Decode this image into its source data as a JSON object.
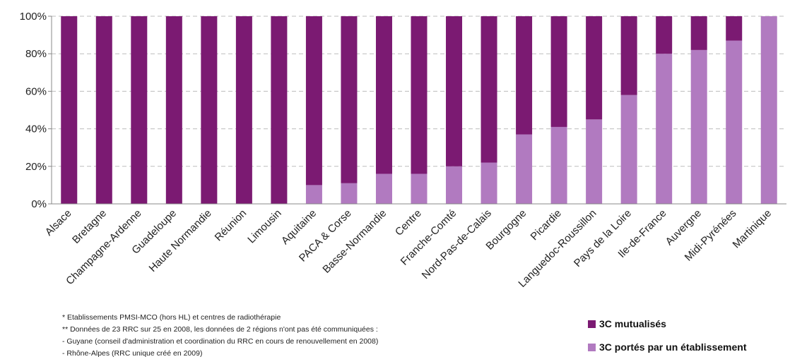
{
  "chart_data": {
    "type": "bar",
    "stacked": true,
    "categories": [
      "Alsace",
      "Bretagne",
      "Champagne-Ardenne",
      "Guadeloupe",
      "Haute Normandie",
      "Réunion",
      "Limousin",
      "Aquitaine",
      "PACA & Corse",
      "Basse-Normandie",
      "Centre",
      "Franche-Comté",
      "Nord-Pas-de-Calais",
      "Bourgogne",
      "Picardie",
      "Languedoc-Roussillon",
      "Pays de la Loire",
      "Ile-de-France",
      "Auvergne",
      "Midi-Pyrénées",
      "Martinique"
    ],
    "series": [
      {
        "name": "3C portés par un établissement",
        "color": "#b17ac0",
        "values": [
          0,
          0,
          0,
          0,
          0,
          0,
          0,
          10,
          11,
          16,
          16,
          20,
          22,
          37,
          41,
          45,
          58,
          80,
          82,
          87,
          100
        ]
      },
      {
        "name": "3C mutualisés",
        "color": "#7b1a72",
        "values": [
          100,
          100,
          100,
          100,
          100,
          100,
          100,
          90,
          89,
          84,
          84,
          80,
          78,
          63,
          59,
          55,
          42,
          20,
          18,
          13,
          0
        ]
      }
    ],
    "ylim": [
      0,
      100
    ],
    "yticks": [
      "0%",
      "20%",
      "40%",
      "60%",
      "80%",
      "100%"
    ],
    "ytick_values": [
      0,
      20,
      40,
      60,
      80,
      100
    ],
    "grid": true,
    "legend_position": "bottom-right"
  },
  "legend": [
    {
      "label": "3C mutualisés",
      "color": "#7b1a72"
    },
    {
      "label": "3C portés par un établissement",
      "color": "#b17ac0"
    }
  ],
  "notes": [
    "* Etablissements PMSI-MCO (hors HL) et centres de radiothérapie",
    "** Données de 23 RRC sur 25 en 2008, les données de 2 régions n'ont pas été communiquées :",
    "- Guyane (conseil d'administration et coordination du RRC en cours de renouvellement en 2008)",
    "- Rhône-Alpes (RRC unique créé en 2009)"
  ]
}
